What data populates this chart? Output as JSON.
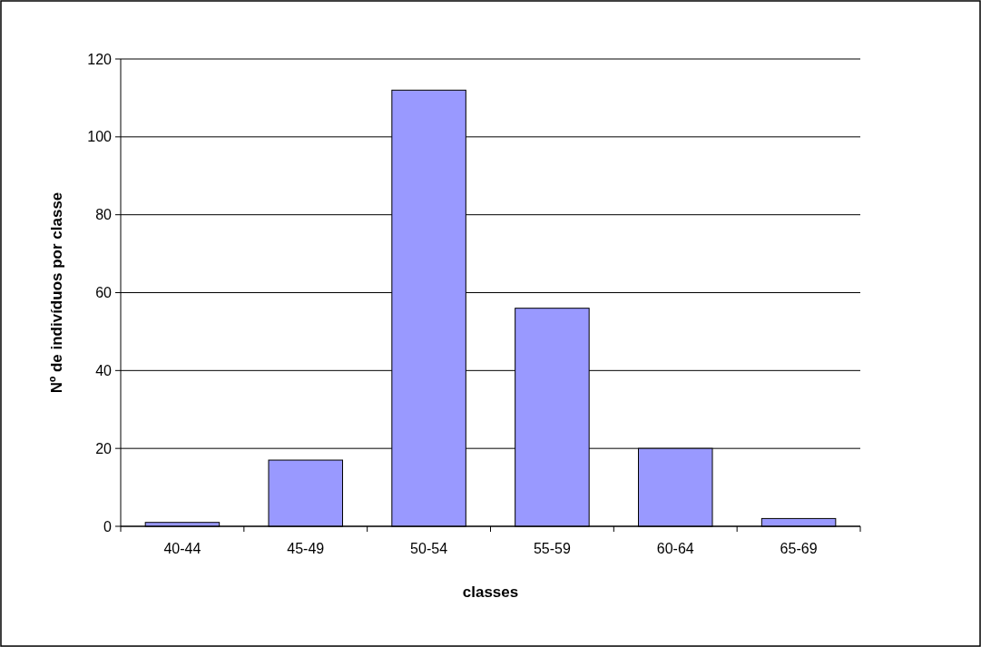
{
  "chart_data": {
    "type": "bar",
    "xlabel": "classes",
    "ylabel": "Nº de indivíduos por classe",
    "categories": [
      "40-44",
      "45-49",
      "50-54",
      "55-59",
      "60-64",
      "65-69"
    ],
    "values": [
      1,
      17,
      112,
      56,
      20,
      2
    ],
    "color": "#9999ff",
    "ylim": [
      0,
      120
    ],
    "yticks": [
      0,
      20,
      40,
      60,
      80,
      100,
      120
    ],
    "grid": "y"
  }
}
